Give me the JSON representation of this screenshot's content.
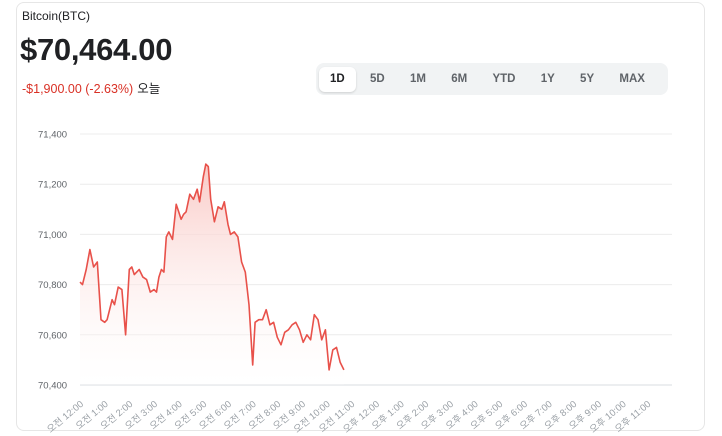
{
  "header": {
    "asset_name": "Bitcoin(BTC)",
    "price": "$70,464.00",
    "change": "-$1,900.00 (-2.63%)",
    "period": "오늘"
  },
  "ranges": [
    "1D",
    "5D",
    "1M",
    "6M",
    "YTD",
    "1Y",
    "5Y",
    "MAX"
  ],
  "active_range": "1D",
  "colors": {
    "line": "#e8514a",
    "fill_top": "#f9c7c3",
    "negative": "#d93025"
  },
  "chart_data": {
    "type": "area",
    "title": "",
    "xlabel": "",
    "ylabel": "",
    "ylim": [
      70400,
      71400
    ],
    "y_ticks": [
      "70,400",
      "70,600",
      "70,800",
      "71,000",
      "71,200",
      "71,400"
    ],
    "y_tick_values": [
      70400,
      70600,
      70800,
      71000,
      71200,
      71400
    ],
    "x_tick_labels": [
      "오전 12:00",
      "오전 1:00",
      "오전 2:00",
      "오전 3:00",
      "오전 4:00",
      "오전 5:00",
      "오전 6:00",
      "오전 7:00",
      "오전 8:00",
      "오전 9:00",
      "오전 10:00",
      "오전 11:00",
      "오후 12:00",
      "오후 1:00",
      "오후 2:00",
      "오후 3:00",
      "오후 4:00",
      "오후 5:00",
      "오후 6:00",
      "오후 7:00",
      "오후 8:00",
      "오후 9:00",
      "오후 10:00",
      "오후 11:00"
    ],
    "x_unit": "hours since 오전 12:00",
    "x_range": [
      0,
      24
    ],
    "grid": true,
    "series": [
      {
        "x": [
          0,
          0.1,
          0.25,
          0.4,
          0.55,
          0.7,
          0.85,
          1.0,
          1.1,
          1.2,
          1.3,
          1.4,
          1.55,
          1.7,
          1.85,
          2.0,
          2.1,
          2.2,
          2.3,
          2.4,
          2.55,
          2.7,
          2.85,
          3.0,
          3.1,
          3.2,
          3.3,
          3.4,
          3.5,
          3.6,
          3.75,
          3.9,
          4.0,
          4.1,
          4.2,
          4.3,
          4.45,
          4.6,
          4.75,
          4.85,
          5.0,
          5.1,
          5.2,
          5.3,
          5.45,
          5.6,
          5.75,
          5.85,
          6.0,
          6.1,
          6.25,
          6.4,
          6.55,
          6.7,
          6.85,
          7.0,
          7.1,
          7.25,
          7.4,
          7.55,
          7.7,
          7.85,
          8.0,
          8.15,
          8.3,
          8.45,
          8.6,
          8.75,
          8.9,
          9.05,
          9.2,
          9.35,
          9.5,
          9.65,
          9.8,
          9.95,
          10.1,
          10.25,
          10.4,
          10.55,
          10.7
        ],
        "values": [
          70810,
          70800,
          70860,
          70940,
          70870,
          70890,
          70660,
          70650,
          70660,
          70700,
          70740,
          70720,
          70790,
          70780,
          70600,
          70860,
          70870,
          70840,
          70850,
          70860,
          70830,
          70820,
          70770,
          70780,
          70770,
          70830,
          70860,
          70850,
          70990,
          71010,
          70980,
          71120,
          71090,
          71060,
          71080,
          71090,
          71160,
          71140,
          71180,
          71130,
          71230,
          71280,
          71270,
          71140,
          71050,
          71110,
          71100,
          71130,
          71040,
          71000,
          71010,
          70990,
          70890,
          70850,
          70720,
          70480,
          70650,
          70660,
          70660,
          70700,
          70640,
          70650,
          70590,
          70560,
          70610,
          70620,
          70640,
          70650,
          70620,
          70570,
          70600,
          70580,
          70680,
          70660,
          70580,
          70620,
          70460,
          70540,
          70550,
          70490,
          70460
        ]
      }
    ]
  }
}
